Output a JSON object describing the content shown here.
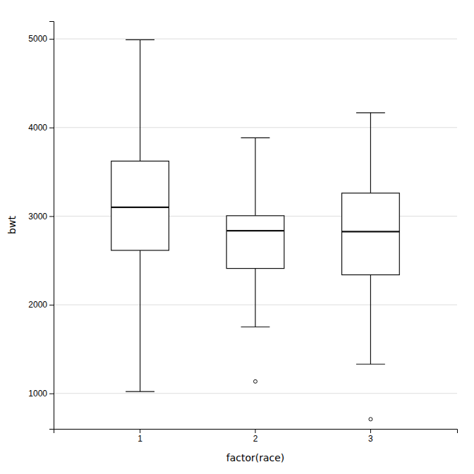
{
  "chart_data": {
    "type": "box",
    "categories": [
      "1",
      "2",
      "3"
    ],
    "boxes": [
      {
        "q1": 2614,
        "median": 3100,
        "q3": 3621,
        "whisker_low": 1021,
        "whisker_high": 4990,
        "outliers": []
      },
      {
        "q1": 2410,
        "median": 2836,
        "q3": 3005,
        "whisker_low": 1750,
        "whisker_high": 3884,
        "outliers": [
          1135
        ]
      },
      {
        "q1": 2338,
        "median": 2826,
        "q3": 3260,
        "whisker_low": 1330,
        "whisker_high": 4167,
        "outliers": [
          709
        ]
      }
    ],
    "xlabel": "factor(race)",
    "ylabel": "bwt",
    "ylim": [
      600,
      5200
    ],
    "yticks": [
      1000,
      2000,
      3000,
      4000,
      5000
    ],
    "grid": true,
    "color": "#111111"
  }
}
